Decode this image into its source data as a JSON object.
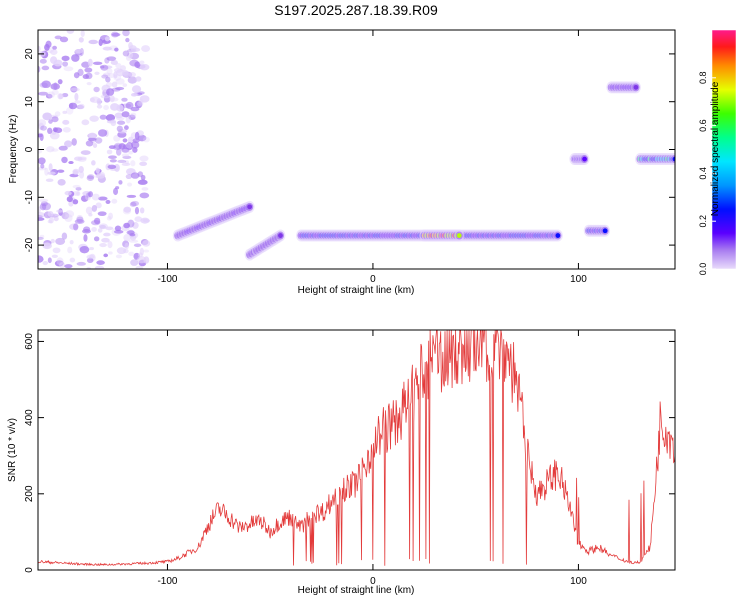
{
  "title": "S197.2025.287.18.39.R09",
  "colors": {
    "line": "#e33b3b",
    "axis": "#000000",
    "spectrogram_ramp": [
      "#ffffff",
      "#e3d3fb",
      "#a77af0",
      "#7b33e6",
      "#5a00ff",
      "#0008ff",
      "#00c8ff",
      "#00ff7a",
      "#b4ff00",
      "#ffae00",
      "#ff1a1a",
      "#ff1a8c"
    ]
  },
  "chart_data": [
    {
      "type": "heatmap",
      "title": "S197.2025.287.18.39.R09",
      "xlabel": "Height of straight line (km)",
      "ylabel": "Frequency (Hz)",
      "xlim": [
        -163,
        147
      ],
      "ylim": [
        -25,
        25
      ],
      "x_ticks": [
        -100,
        0,
        100
      ],
      "y_ticks": [
        -20,
        -10,
        0,
        10,
        20
      ],
      "colorbar": {
        "label": "Normalized spectral amplitude",
        "range": [
          0,
          1
        ],
        "ticks": [
          0.0,
          0.2,
          0.4,
          0.6,
          0.8
        ]
      },
      "grid": false,
      "features": [
        {
          "x": [
            -163,
            -110
          ],
          "freq": [
            -25,
            25
          ],
          "amplitude": 0.15,
          "note": "scattered noise"
        },
        {
          "x": [
            -95,
            -60
          ],
          "freq_start": -18,
          "freq_end": -12,
          "amplitude": 0.35
        },
        {
          "x": [
            -60,
            -45
          ],
          "freq_start": -22,
          "freq_end": -18,
          "amplitude": 0.3
        },
        {
          "x": [
            -35,
            90
          ],
          "freq": -18,
          "amplitude": 0.45
        },
        {
          "x": [
            25,
            42
          ],
          "freq": -18,
          "amplitude": 0.95
        },
        {
          "x": [
            98,
            103
          ],
          "freq": -2,
          "amplitude": 0.4
        },
        {
          "x": [
            105,
            113
          ],
          "freq": -17,
          "amplitude": 0.45
        },
        {
          "x": [
            116,
            128
          ],
          "freq": 13,
          "amplitude": 0.35
        },
        {
          "x": [
            130,
            147
          ],
          "freq": -2,
          "amplitude": 0.6
        }
      ]
    },
    {
      "type": "line",
      "title": "",
      "xlabel": "Height of straight line (km)",
      "ylabel": "SNR (10 * v/v)",
      "xlim": [
        -163,
        147
      ],
      "ylim": [
        0,
        630
      ],
      "x_ticks": [
        -100,
        0,
        100
      ],
      "y_ticks": [
        0,
        200,
        400,
        600
      ],
      "grid": false,
      "series": [
        {
          "x": [
            -163,
            -150,
            -140,
            -130,
            -120,
            -110,
            -100,
            -95,
            -90,
            -85,
            -80,
            -75,
            -70,
            -65,
            -60,
            -55,
            -50,
            -45,
            -40,
            -35,
            -30,
            -25,
            -20,
            -15,
            -10,
            -5,
            0,
            5,
            10,
            15,
            20,
            25,
            30,
            35,
            40,
            45,
            50,
            55,
            60,
            65,
            70,
            75,
            80,
            85,
            90,
            95,
            100,
            105,
            110,
            115,
            120,
            125,
            130,
            135,
            140,
            147
          ],
          "y": [
            22,
            18,
            15,
            14,
            16,
            18,
            22,
            30,
            45,
            60,
            120,
            160,
            140,
            110,
            120,
            130,
            100,
            130,
            140,
            110,
            150,
            150,
            180,
            220,
            220,
            260,
            330,
            370,
            380,
            420,
            470,
            520,
            550,
            570,
            580,
            585,
            590,
            595,
            600,
            570,
            500,
            300,
            200,
            230,
            260,
            180,
            70,
            50,
            60,
            40,
            30,
            20,
            20,
            60,
            400,
            330
          ]
        }
      ]
    }
  ]
}
